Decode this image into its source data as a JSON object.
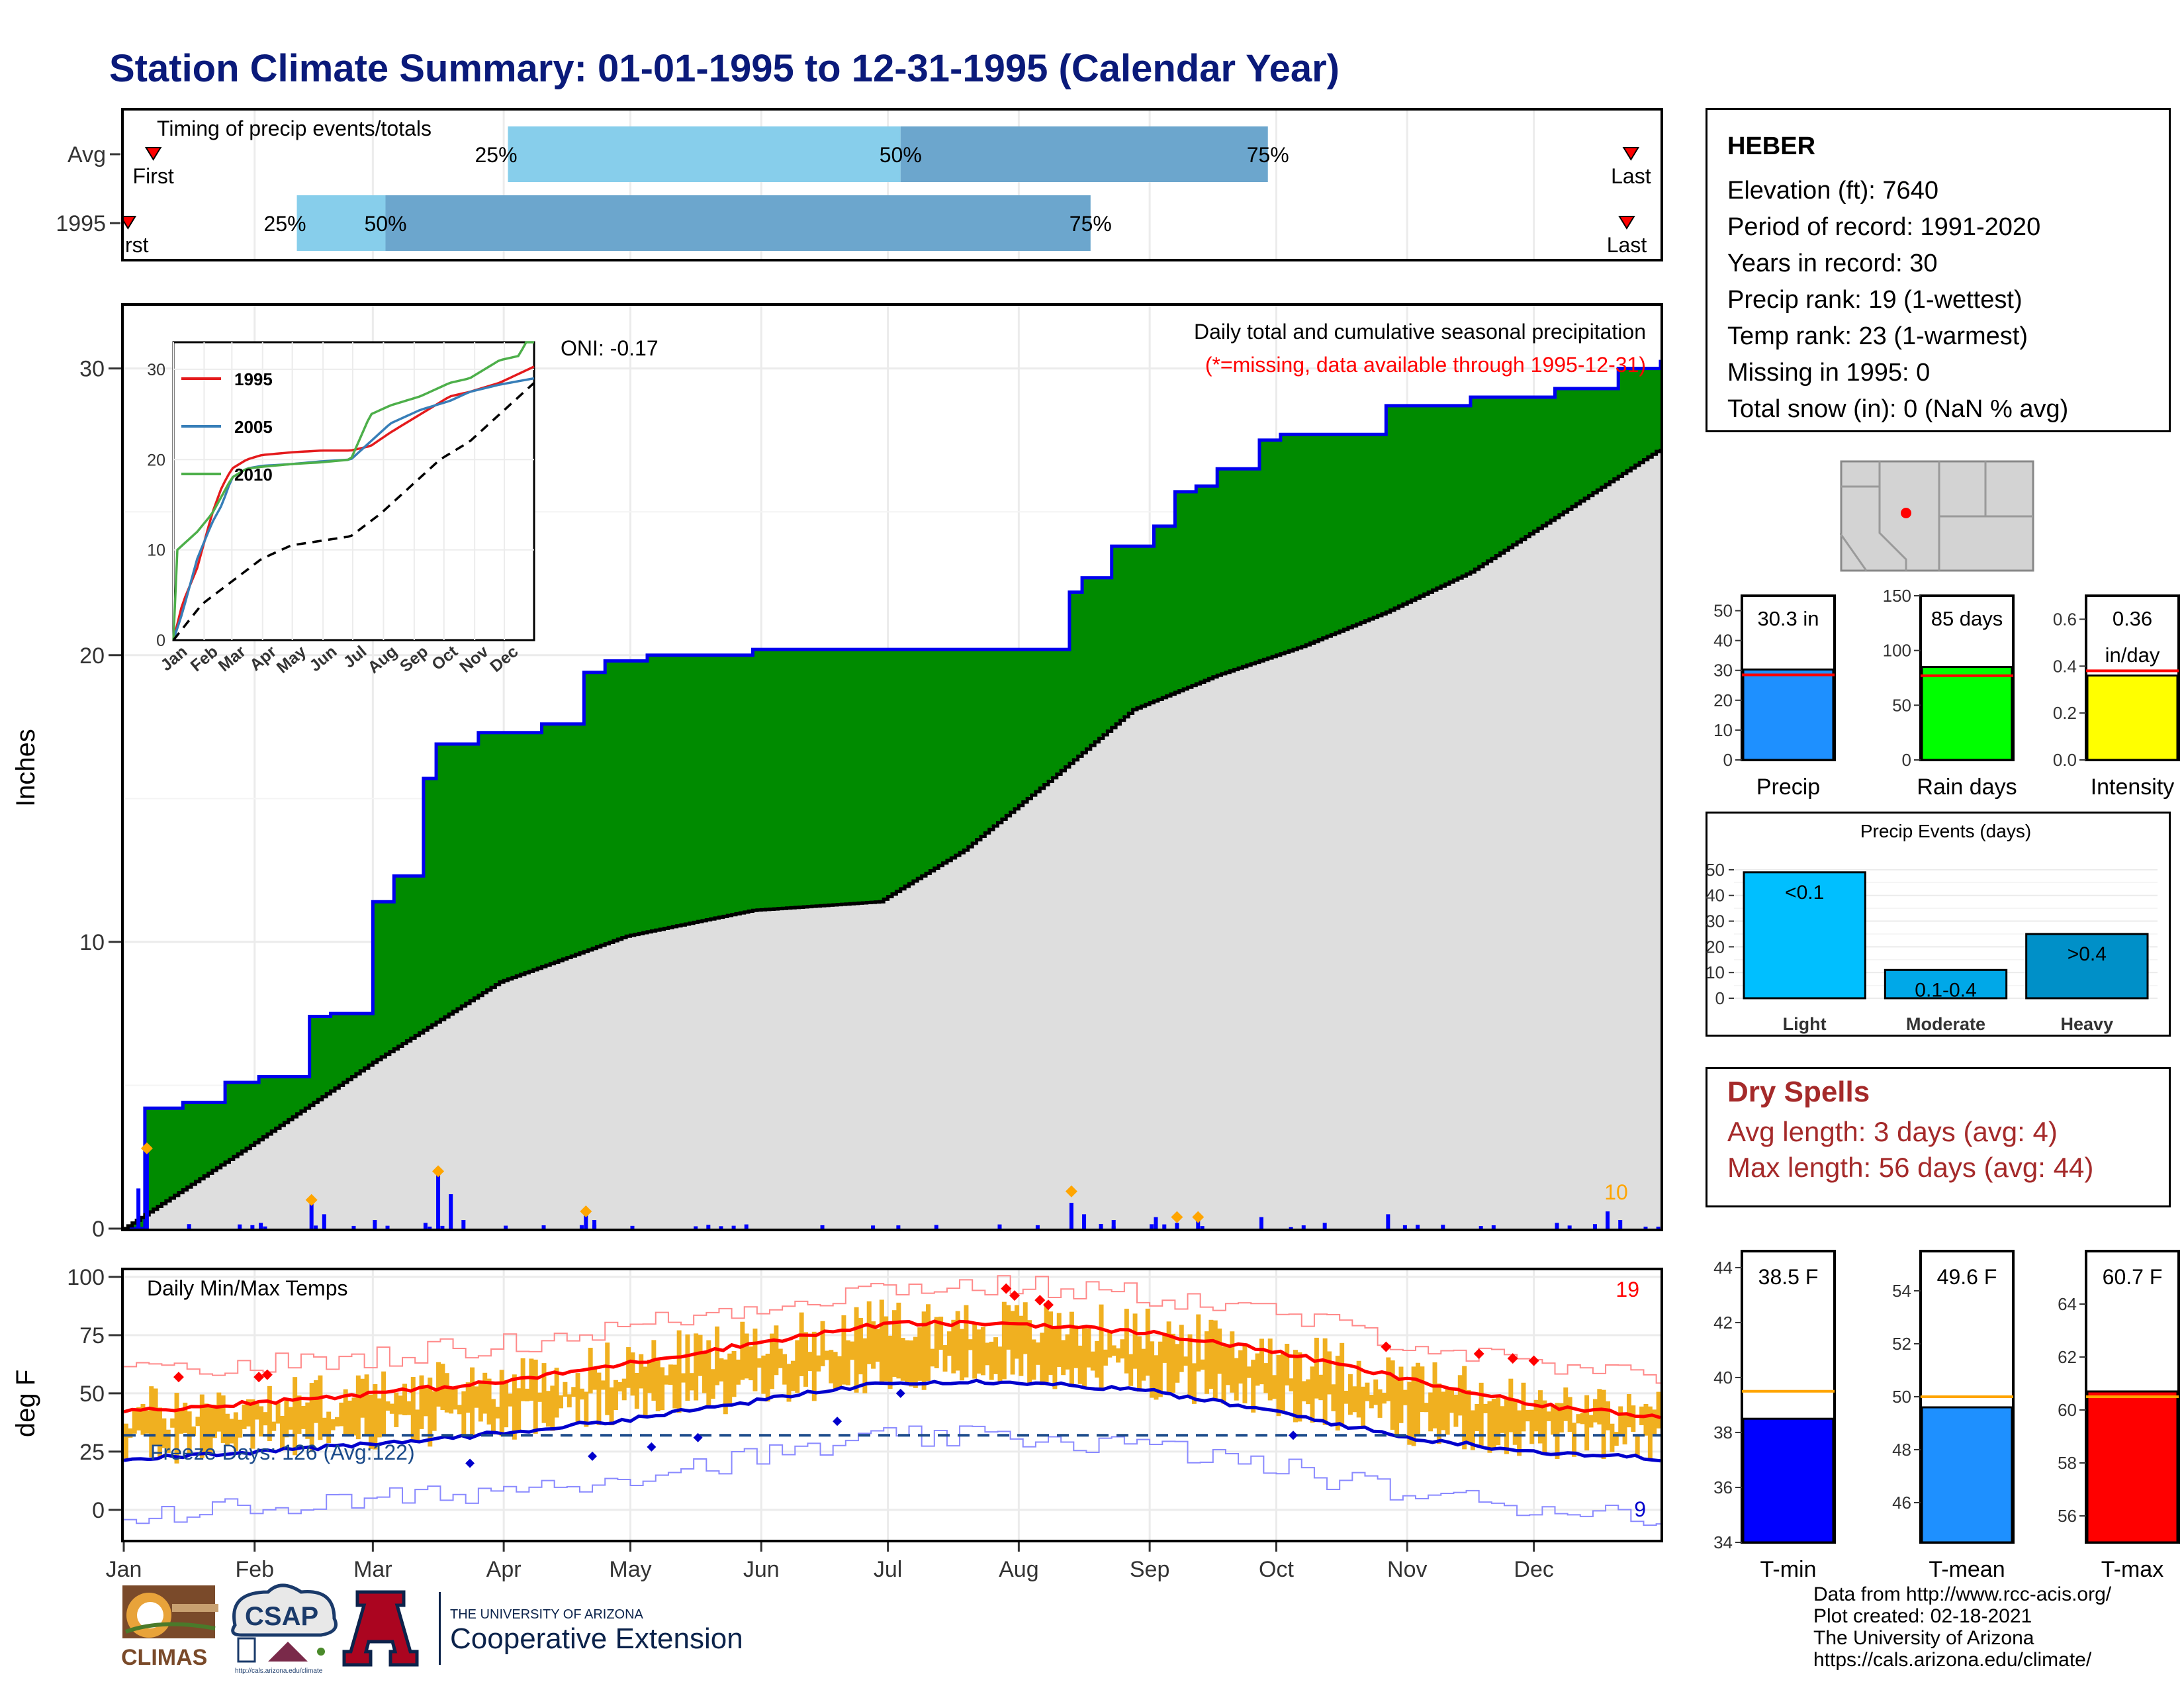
{
  "title": "Station Climate Summary: 01-01-1995 to 12-31-1995 (Calendar Year)",
  "timing": {
    "label": "Timing of precip events/totals",
    "rows": [
      {
        "name": "Avg",
        "first_label": "First",
        "last_label": "Last",
        "p25": "25%",
        "p50": "50%",
        "p75": "75%",
        "first_doy": 8,
        "p25_doy": 92,
        "p50_doy": 185,
        "p75_doy": 272,
        "last_doy": 358
      },
      {
        "name": "1995",
        "first_label": "First",
        "last_label": "Last",
        "p25": "25%",
        "p50": "50%",
        "p75": "75%",
        "first_doy": 2,
        "p25_doy": 42,
        "p50_doy": 63,
        "p75_doy": 230,
        "last_doy": 357
      }
    ]
  },
  "main": {
    "ylabel": "Inches",
    "oni": "ONI: -0.17",
    "caption1": "Daily total and cumulative seasonal precipitation",
    "caption2": "(*=missing, data available through 1995-12-31)",
    "count_label": "10",
    "yticks": [
      "0",
      "10",
      "20",
      "30"
    ],
    "months": [
      "Jan",
      "Feb",
      "Mar",
      "Apr",
      "May",
      "Jun",
      "Jul",
      "Aug",
      "Sep",
      "Oct",
      "Nov",
      "Dec"
    ]
  },
  "inset": {
    "legend": [
      {
        "name": "1995",
        "color": "#e41a1c"
      },
      {
        "name": "2005",
        "color": "#377eb8"
      },
      {
        "name": "2010",
        "color": "#4daf4a"
      }
    ],
    "yticks": [
      "0",
      "10",
      "20",
      "30"
    ],
    "months": [
      "Jan",
      "Feb",
      "Mar",
      "Apr",
      "May",
      "Jun",
      "Jul",
      "Aug",
      "Sep",
      "Oct",
      "Nov",
      "Dec"
    ]
  },
  "temps": {
    "label": "Daily Min/Max Temps",
    "ylabel": "deg F",
    "freeze": "Freeze Days: 126 (Avg:122)",
    "hot_count": "19",
    "cold_count": "9",
    "yticks": [
      "0",
      "25",
      "50",
      "75",
      "100"
    ]
  },
  "station": {
    "name": "HEBER",
    "lines": [
      "Elevation (ft): 7640",
      "Period of record: 1991-2020",
      "Years in record: 30",
      "Precip rank: 19 (1-wettest)",
      "Temp rank: 23 (1-warmest)",
      "Missing in 1995: 0",
      "Total snow (in): 0 (NaN % avg)"
    ]
  },
  "mini_bars": [
    {
      "label": "Precip",
      "value_label": "30.3 in",
      "value": 30.3,
      "avg": 28.5,
      "ymax": 55,
      "ticks": [
        "0",
        "10",
        "20",
        "30",
        "40",
        "50"
      ],
      "color": "#1e90ff"
    },
    {
      "label": "Rain days",
      "value_label": "85 days",
      "value": 85,
      "avg": 77,
      "ymax": 150,
      "ticks": [
        "0",
        "50",
        "100",
        "150"
      ],
      "color": "#00ff00"
    },
    {
      "label": "Intensity",
      "value_label": "0.36",
      "value_label2": "in/day",
      "value": 0.36,
      "avg": 0.38,
      "ymax": 0.7,
      "ticks": [
        "0.0",
        "0.2",
        "0.4",
        "0.6"
      ],
      "color": "#ffff00"
    }
  ],
  "events": {
    "title": "Precip Events (days)",
    "ticks": [
      "0",
      "10",
      "20",
      "30",
      "40",
      "50"
    ],
    "bars": [
      {
        "cat": "Light",
        "value": 49,
        "label": "<0.1",
        "color": "#00bfff"
      },
      {
        "cat": "Moderate",
        "value": 11,
        "label": "0.1-0.4",
        "color": "#00a8e8"
      },
      {
        "cat": "Heavy",
        "value": 25,
        "label": ">0.4",
        "color": "#0090c8"
      }
    ]
  },
  "dry": {
    "title": "Dry Spells",
    "avg": "Avg length: 3 days (avg: 4)",
    "max": "Max length: 56 days (avg: 44)"
  },
  "temp_bars": [
    {
      "label": "T-min",
      "value_label": "38.5 F",
      "value": 38.5,
      "avg": 39.5,
      "ymin": 34,
      "ymax": 44.6,
      "ticks": [
        "34",
        "36",
        "38",
        "40",
        "42",
        "44"
      ],
      "color": "#0000ff"
    },
    {
      "label": "T-mean",
      "value_label": "49.6 F",
      "value": 49.6,
      "avg": 50.0,
      "ymin": 44.5,
      "ymax": 55.5,
      "ticks": [
        "46",
        "48",
        "50",
        "52",
        "54"
      ],
      "color": "#1e90ff"
    },
    {
      "label": "T-max",
      "value_label": "60.7 F",
      "value": 60.7,
      "avg": 60.5,
      "ymin": 55,
      "ymax": 66,
      "ticks": [
        "56",
        "58",
        "60",
        "62",
        "64"
      ],
      "color": "#ff0000"
    }
  ],
  "credits": [
    "Data from http://www.rcc-acis.org/",
    "Plot created: 02-18-2021",
    "The University of Arizona",
    "https://cals.arizona.edu/climate/"
  ],
  "logos": {
    "climas": "CLIMAS",
    "csap": "CSAP",
    "csap_url": "http://cals.arizona.edu/climate",
    "ua_letter": "A",
    "ua_line1": "THE UNIVERSITY OF ARIZONA",
    "ua_line2": "Cooperative Extension"
  },
  "chart_data": [
    {
      "type": "bar",
      "title": "Timing of precip events/totals",
      "categories": [
        "Avg",
        "1995"
      ],
      "series": [
        {
          "name": "25%",
          "values": [
            92,
            42
          ]
        },
        {
          "name": "50%",
          "values": [
            185,
            63
          ]
        },
        {
          "name": "75%",
          "values": [
            272,
            230
          ]
        }
      ]
    },
    {
      "type": "area",
      "title": "Daily total and cumulative seasonal precipitation",
      "ylabel": "Inches",
      "ylim": [
        0,
        32
      ],
      "xlim": [
        1,
        365
      ],
      "series": [
        {
          "x": [
            1,
            6,
            15,
            25,
            33,
            45,
            50,
            60,
            65,
            72,
            75,
            85,
            100,
            110,
            115,
            125,
            135,
            150,
            180,
            210,
            220,
            225,
            228,
            235,
            245,
            250,
            255,
            260,
            270,
            275,
            285,
            300,
            320,
            340,
            350,
            355,
            365
          ],
          "values": [
            0,
            4.2,
            4.4,
            5.1,
            5.3,
            7.4,
            7.5,
            11.4,
            12.3,
            15.7,
            16.9,
            17.3,
            17.6,
            19.4,
            19.8,
            20.0,
            20.0,
            20.2,
            20.2,
            20.2,
            20.2,
            22.2,
            22.7,
            23.8,
            24.5,
            25.7,
            25.9,
            26.5,
            27.5,
            27.7,
            27.7,
            28.7,
            29.0,
            29.3,
            29.3,
            30.0,
            30.3
          ]
        },
        {
          "x": [
            1,
            30,
            60,
            90,
            120,
            150,
            180,
            200,
            220,
            240,
            260,
            280,
            300,
            320,
            340,
            365
          ],
          "values": [
            0,
            2.8,
            5.8,
            8.6,
            10.2,
            11.1,
            11.4,
            13.2,
            15.6,
            18.1,
            19.3,
            20.3,
            21.5,
            22.9,
            24.8,
            27.2
          ]
        }
      ]
    },
    {
      "type": "line",
      "title": "Daily Min/Max Temps",
      "ylabel": "deg F",
      "ylim": [
        -10,
        100
      ],
      "x": [
        1,
        32,
        60,
        91,
        121,
        152,
        182,
        213,
        244,
        274,
        305,
        335,
        365
      ],
      "series": [
        {
          "values": [
            42,
            46,
            50,
            55,
            63,
            72,
            80,
            80,
            76,
            68,
            56,
            45,
            40
          ]
        },
        {
          "values": [
            22,
            25,
            28,
            33,
            39,
            47,
            55,
            55,
            51,
            42,
            31,
            25,
            22
          ]
        }
      ]
    }
  ]
}
